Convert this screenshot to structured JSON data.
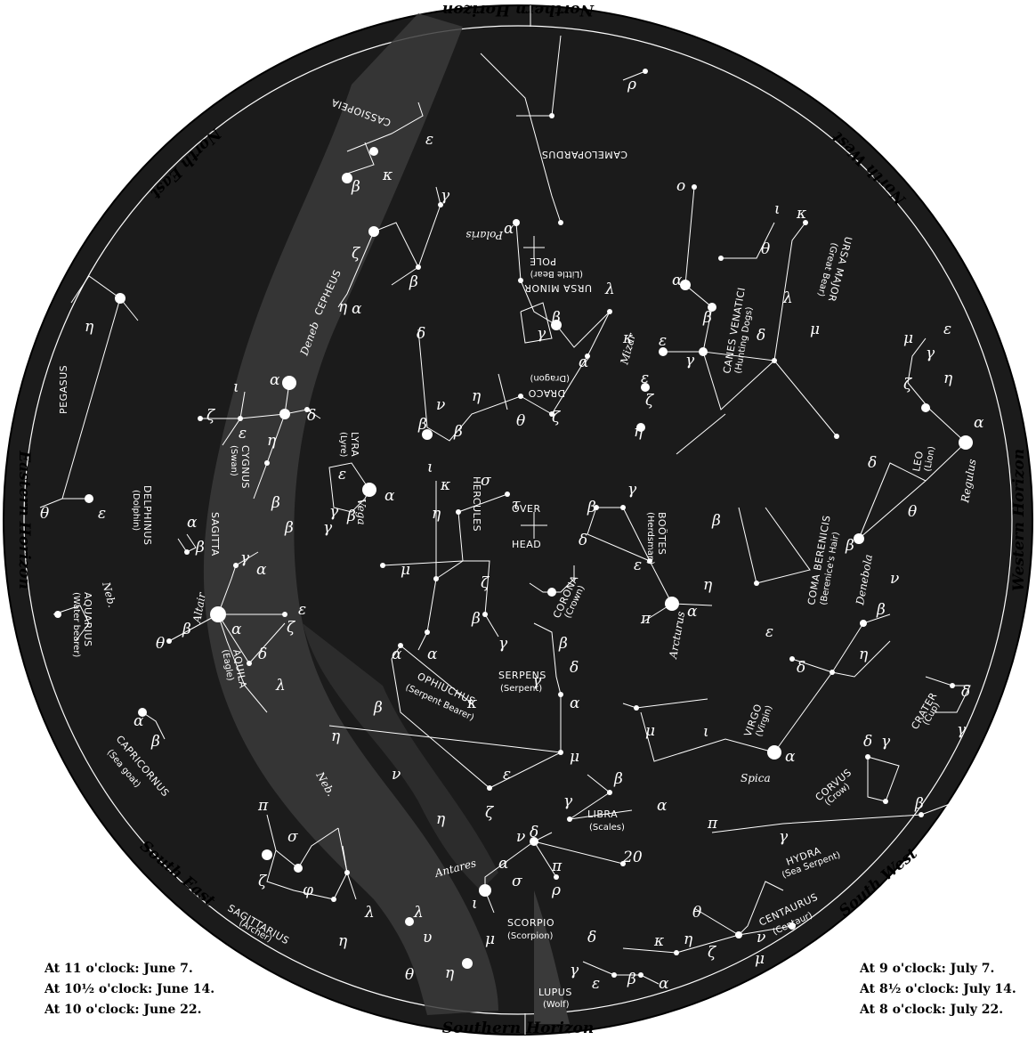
{
  "horizons": {
    "northern": "Northern Horizon",
    "southern": "Southern Horizon",
    "eastern": "Eastern Horizon",
    "western": "Western Horizon",
    "north_east": "North East",
    "north_west": "North West",
    "south_east": "South East",
    "south_west": "South West"
  },
  "overhead": {
    "line1": "OVER",
    "line2": "HEAD"
  },
  "pole": {
    "label": "POLE",
    "polaris": "Polaris"
  },
  "constellations": [
    {
      "name": "CASSIOPEIA",
      "sub": ""
    },
    {
      "name": "CAMELOPARDUS",
      "sub": ""
    },
    {
      "name": "CEPHEUS",
      "sub": ""
    },
    {
      "name": "URSA MINOR",
      "sub": "(Little Bear)"
    },
    {
      "name": "URSA MAJOR",
      "sub": "(Great Bear)"
    },
    {
      "name": "DRACO",
      "sub": "(Dragon)"
    },
    {
      "name": "PEGASUS",
      "sub": ""
    },
    {
      "name": "CYGNUS",
      "sub": "(Swan)"
    },
    {
      "name": "LYRA",
      "sub": "(Lyre)"
    },
    {
      "name": "DELPHINUS",
      "sub": "(Dolphin)"
    },
    {
      "name": "SAGITTA",
      "sub": ""
    },
    {
      "name": "HERCULES",
      "sub": ""
    },
    {
      "name": "BOÖTES",
      "sub": "(Herdsman)"
    },
    {
      "name": "CANES VENATICI",
      "sub": "(Hunting Dogs)"
    },
    {
      "name": "LEO",
      "sub": "(Lion)"
    },
    {
      "name": "COMA BERENICIS",
      "sub": "(Berenice's Hair)"
    },
    {
      "name": "AQUARIUS",
      "sub": "(Water bearer)"
    },
    {
      "name": "AQUILA",
      "sub": "(Eagle)"
    },
    {
      "name": "CORONA",
      "sub": "(Crown)"
    },
    {
      "name": "SERPENS",
      "sub": "(Serpent)"
    },
    {
      "name": "OPHIUCHUS",
      "sub": "(Serpent Bearer)"
    },
    {
      "name": "VIRGO",
      "sub": "(Virgin)"
    },
    {
      "name": "CRATER",
      "sub": "(Cup)"
    },
    {
      "name": "CAPRICORNUS",
      "sub": "(Sea goat)"
    },
    {
      "name": "CORVUS",
      "sub": "(Crow)"
    },
    {
      "name": "LIBRA",
      "sub": "(Scales)"
    },
    {
      "name": "HYDRA",
      "sub": "(Sea Serpent)"
    },
    {
      "name": "SCORPIO",
      "sub": "(Scorpion)"
    },
    {
      "name": "SAGITTARIUS",
      "sub": "(Archer)"
    },
    {
      "name": "CENTAURUS",
      "sub": "(Centaur)"
    },
    {
      "name": "LUPUS",
      "sub": "(Wolf)"
    }
  ],
  "star_names": {
    "vega": "Vega",
    "altair": "Altair",
    "arcturus": "Arcturus",
    "spica": "Spica",
    "regulus": "Regulus",
    "denebola": "Denebola",
    "antares": "Antares",
    "deneb": "Deneb",
    "mizar": "Mizar"
  },
  "nebula_labels": [
    "Neb.",
    "Neb."
  ],
  "times_left": [
    "At 11 o'clock:  June 7.",
    "At 10½ o'clock:  June 14.",
    "At 10 o'clock:  June 22."
  ],
  "times_right": [
    "At 9 o'clock:  July 7.",
    "At 8½ o'clock:  July 14.",
    "At 8 o'clock:  July 22."
  ],
  "colors": {
    "sky": "#1b1b1b",
    "ink": "#000000",
    "star": "#ffffff",
    "paper": "#ffffff"
  }
}
